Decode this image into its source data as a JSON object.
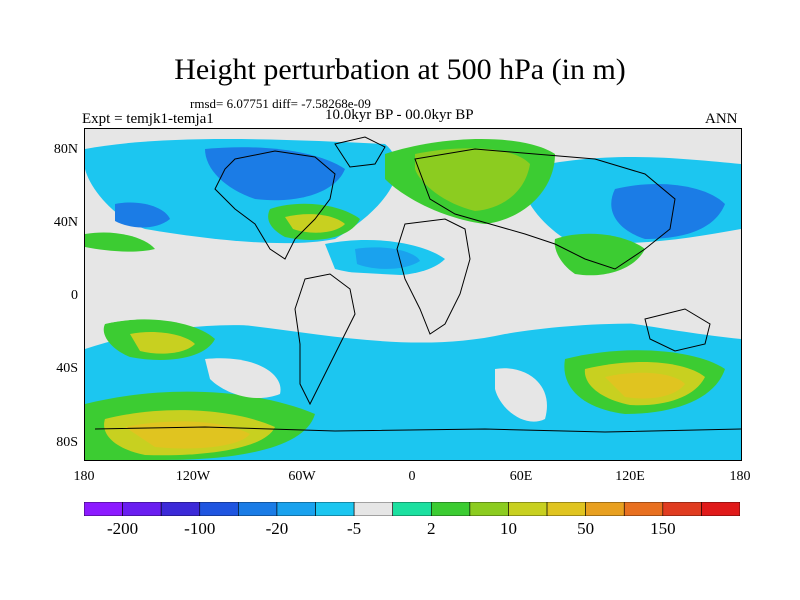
{
  "title": "Height perturbation at 500 hPa (in m)",
  "subtitle_stats": "rmsd= 6.07751 diff= -7.58268e-09",
  "subtitle_period": "10.0kyr BP - 00.0kyr BP",
  "experiment_label": "Expt = temjk1-temja1",
  "season_label": "ANN",
  "lat_labels": [
    "80N",
    "40N",
    "0",
    "40S",
    "80S"
  ],
  "lon_labels": [
    "180",
    "120W",
    "60W",
    "0",
    "60E",
    "120E",
    "180"
  ],
  "colorbar": {
    "colors": [
      "#8c1aff",
      "#6a1ef0",
      "#3c2ad8",
      "#1f55e0",
      "#1b7ce6",
      "#1aa2ee",
      "#1cc6f0",
      "#e6e6e6",
      "#1ce0a0",
      "#3ccc32",
      "#8ccc20",
      "#c8d020",
      "#e0c420",
      "#e8a020",
      "#e87020",
      "#e03c20",
      "#e01a1a"
    ],
    "tick_labels": [
      "-200",
      "-100",
      "-20",
      "-5",
      "2",
      "10",
      "50",
      "150"
    ]
  }
}
